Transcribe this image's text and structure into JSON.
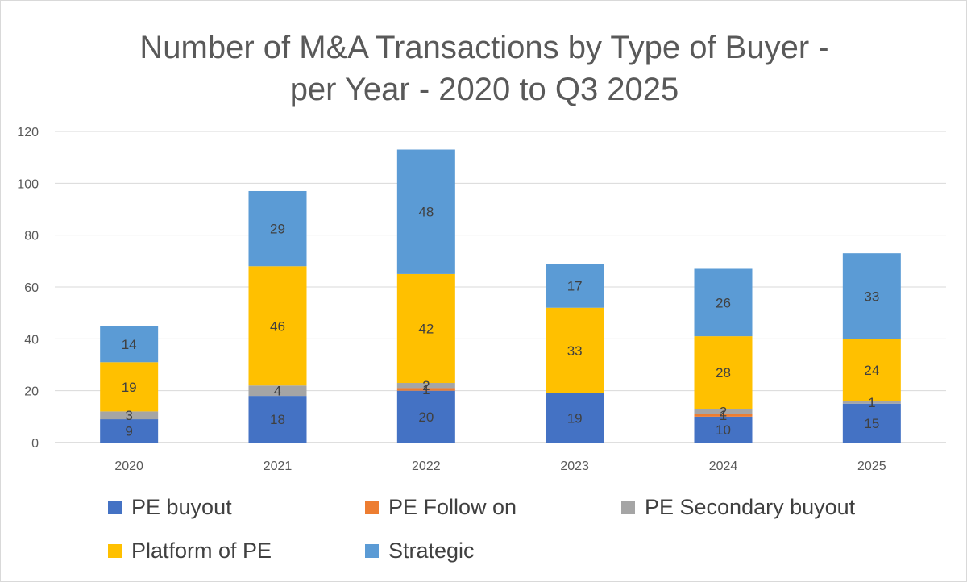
{
  "chart_data": {
    "type": "bar",
    "stacked": true,
    "title": [
      "Number of M&A Transactions by Type of Buyer -",
      "per Year - 2020 to Q3 2025"
    ],
    "xlabel": "",
    "ylabel": "",
    "ylim": [
      0,
      120
    ],
    "yticks": [
      0,
      20,
      40,
      60,
      80,
      100,
      120
    ],
    "grid": true,
    "legend_position": "bottom",
    "categories": [
      "2020",
      "2021",
      "2022",
      "2023",
      "2024",
      "2025"
    ],
    "series": [
      {
        "name": "PE buyout",
        "color": "#4472C4",
        "values": [
          9,
          18,
          20,
          19,
          10,
          15
        ]
      },
      {
        "name": "PE Follow on",
        "color": "#ED7D31",
        "values": [
          0,
          0,
          1,
          0,
          1,
          0
        ]
      },
      {
        "name": "PE Secondary buyout",
        "color": "#A5A5A5",
        "values": [
          3,
          4,
          2,
          0,
          2,
          1
        ]
      },
      {
        "name": "Platform of PE",
        "color": "#FFC000",
        "values": [
          19,
          46,
          42,
          33,
          28,
          24
        ]
      },
      {
        "name": "Strategic",
        "color": "#5B9BD5",
        "values": [
          14,
          29,
          48,
          17,
          26,
          33
        ]
      }
    ]
  }
}
